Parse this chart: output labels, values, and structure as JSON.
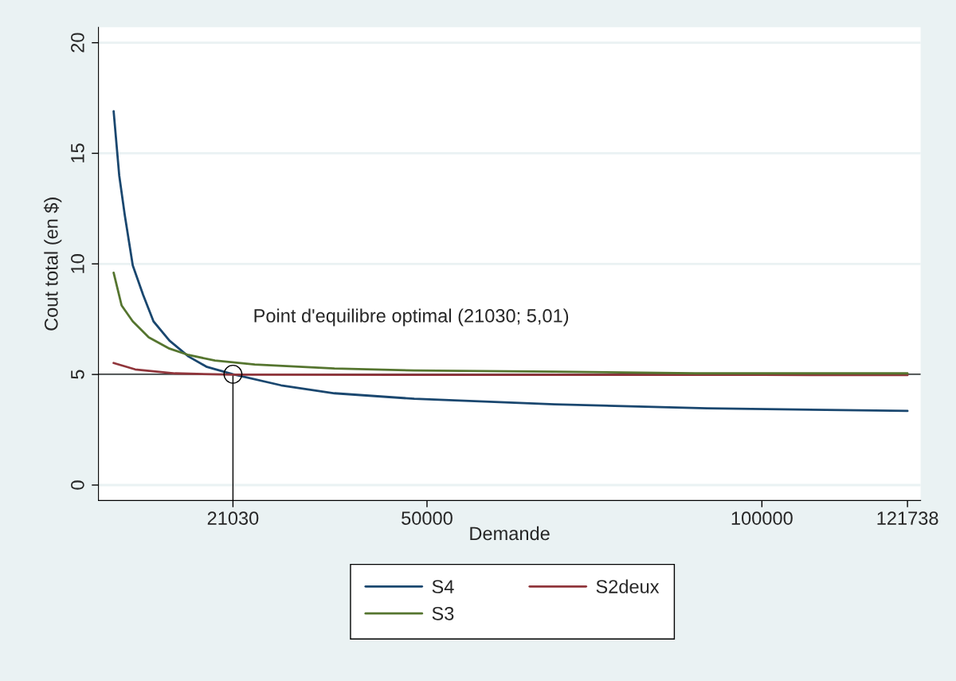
{
  "chart_data": {
    "type": "line",
    "xlabel": "Demande",
    "ylabel": "Cout total (en $)",
    "xlim": [
      950,
      123700
    ],
    "ylim": [
      -0.7,
      20.7
    ],
    "xticks": [
      21030,
      50000,
      100000,
      121738
    ],
    "yticks": [
      0,
      5,
      10,
      15,
      20
    ],
    "grid": "y",
    "legend": "bottom",
    "marker": "none",
    "line_style": "solid",
    "series": [
      {
        "name": "S4",
        "color": "#1a476f",
        "x": [
          3214,
          4048,
          4881,
          6071,
          7619,
          9167,
          11548,
          14405,
          17143,
          21030,
          28214,
          36190,
          48095,
          69048,
          91786,
          121738
        ],
        "values": [
          16.9,
          14.0,
          12.2,
          9.93,
          8.6,
          7.4,
          6.53,
          5.81,
          5.34,
          5.01,
          4.51,
          4.15,
          3.9,
          3.65,
          3.47,
          3.35
        ]
      },
      {
        "name": "S2deux",
        "color": "#90353b",
        "x": [
          3214,
          6429,
          12381,
          21030,
          50000,
          100000,
          121738
        ],
        "values": [
          5.52,
          5.23,
          5.05,
          4.99,
          4.98,
          4.98,
          4.97
        ]
      },
      {
        "name": "S3",
        "color": "#55752f",
        "x": [
          3214,
          4405,
          6071,
          8452,
          11548,
          14405,
          18333,
          24286,
          36190,
          48095,
          69048,
          90000,
          121738
        ],
        "values": [
          9.6,
          8.12,
          7.4,
          6.68,
          6.17,
          5.88,
          5.63,
          5.45,
          5.27,
          5.18,
          5.13,
          5.05,
          5.05
        ]
      },
      {
        "type": "scatter",
        "color": "#000000",
        "marker": "circle",
        "x": [
          21030
        ],
        "values": [
          5.01
        ]
      }
    ],
    "ref_lines": [
      {
        "axis": "y",
        "value": 5.01,
        "color": "#000000"
      },
      {
        "axis": "x",
        "value": 21030,
        "color": "#000000"
      }
    ],
    "annotations": [
      "Point d'equilibre optimal (21030; 5,01)"
    ]
  }
}
